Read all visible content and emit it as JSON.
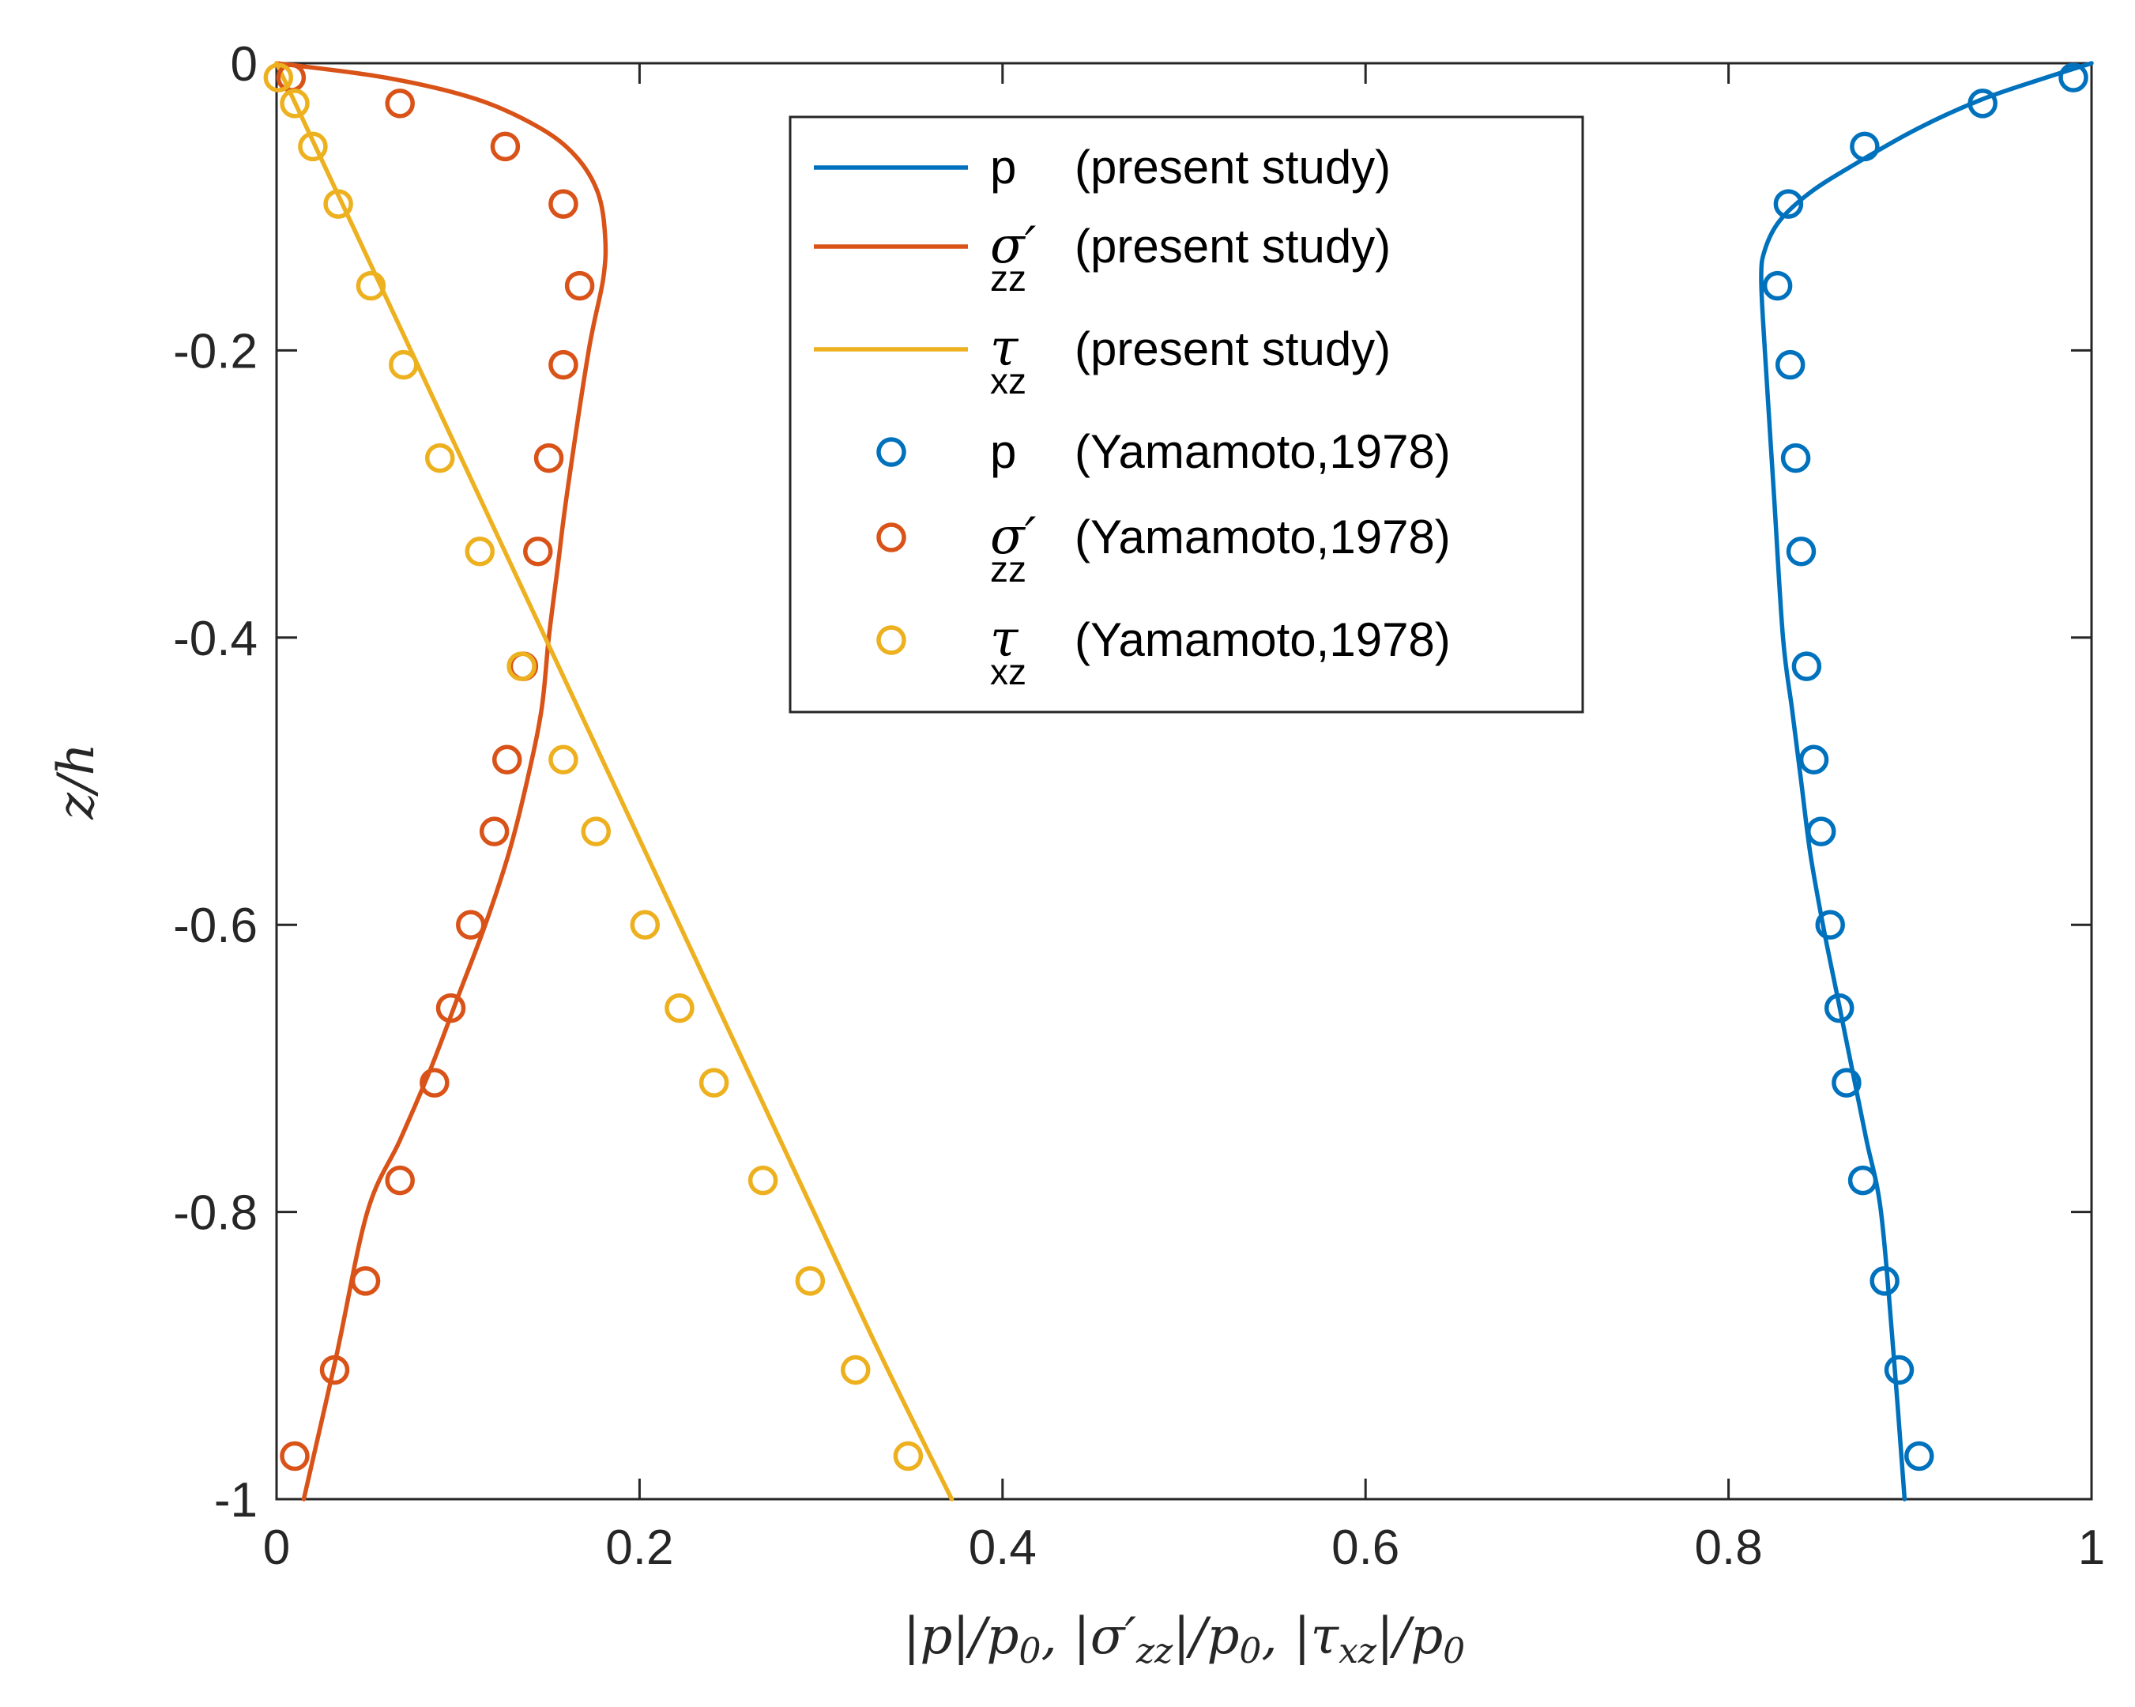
{
  "chart_data": {
    "type": "line",
    "xlabel": "|p|/p0, |σ′zz|/p0, |τxz|/p0",
    "ylabel": "z/h",
    "xlim": [
      0,
      1
    ],
    "ylim": [
      -1,
      0
    ],
    "xticks": [
      0,
      0.2,
      0.4,
      0.6,
      0.8,
      1
    ],
    "yticks": [
      0,
      -0.2,
      -0.4,
      -0.6,
      -0.8,
      -1
    ],
    "xtick_labels": [
      "0",
      "0.2",
      "0.4",
      "0.6",
      "0.8",
      "1"
    ],
    "ytick_labels": [
      "0",
      "-0.2",
      "-0.4",
      "-0.6",
      "-0.8",
      "-1"
    ],
    "grid": false,
    "legend_position": "top-center",
    "colors": {
      "p": "#0072BD",
      "sigma": "#D95319",
      "tau": "#EDB120"
    },
    "legend": {
      "present_study": "(present study)",
      "yamamoto": "(Yamamoto,1978)",
      "p_symbol": "p",
      "sigma_symbol": "σ′",
      "sigma_sub": "zz",
      "tau_symbol": "τ",
      "tau_sub": "xz"
    },
    "series": [
      {
        "name": "p (present study)",
        "kind": "line",
        "color": "#0072BD",
        "x": [
          1.0,
          0.975,
          0.94,
          0.905,
          0.87,
          0.845,
          0.828,
          0.82,
          0.818,
          0.82,
          0.825,
          0.83,
          0.835,
          0.84,
          0.845,
          0.852,
          0.86,
          0.868,
          0.876,
          0.884,
          0.891,
          0.897
        ],
        "z": [
          0,
          -0.01,
          -0.025,
          -0.045,
          -0.07,
          -0.09,
          -0.11,
          -0.13,
          -0.15,
          -0.2,
          -0.3,
          -0.4,
          -0.45,
          -0.5,
          -0.55,
          -0.6,
          -0.65,
          -0.7,
          -0.75,
          -0.8,
          -0.9,
          -1.0
        ]
      },
      {
        "name": "σ′zz (present study)",
        "kind": "line",
        "color": "#D95319",
        "x": [
          0.0,
          0.06,
          0.11,
          0.145,
          0.165,
          0.177,
          0.181,
          0.18,
          0.172,
          0.16,
          0.155,
          0.15,
          0.146,
          0.138,
          0.128,
          0.115,
          0.1,
          0.085,
          0.068,
          0.05,
          0.033,
          0.015
        ],
        "z": [
          0,
          -0.01,
          -0.025,
          -0.045,
          -0.065,
          -0.09,
          -0.12,
          -0.15,
          -0.2,
          -0.3,
          -0.35,
          -0.4,
          -0.45,
          -0.5,
          -0.55,
          -0.6,
          -0.65,
          -0.7,
          -0.75,
          -0.8,
          -0.9,
          -1.0
        ]
      },
      {
        "name": "τxz (present study)",
        "kind": "line",
        "color": "#EDB120",
        "x": [
          0.0,
          0.037,
          0.074,
          0.111,
          0.148,
          0.185,
          0.222,
          0.259,
          0.296,
          0.333,
          0.372
        ],
        "z": [
          0,
          -0.1,
          -0.2,
          -0.3,
          -0.4,
          -0.5,
          -0.6,
          -0.7,
          -0.8,
          -0.9,
          -1.0
        ]
      },
      {
        "name": "p (Yamamoto,1978)",
        "kind": "markers",
        "color": "#0072BD",
        "x": [
          0.99,
          0.94,
          0.875,
          0.833,
          0.827,
          0.834,
          0.837,
          0.84,
          0.843,
          0.847,
          0.851,
          0.856,
          0.861,
          0.865,
          0.874,
          0.886,
          0.894,
          0.905
        ],
        "z": [
          -0.01,
          -0.028,
          -0.058,
          -0.098,
          -0.155,
          -0.21,
          -0.275,
          -0.34,
          -0.42,
          -0.485,
          -0.535,
          -0.6,
          -0.658,
          -0.71,
          -0.778,
          -0.848,
          -0.91,
          -0.97
        ]
      },
      {
        "name": "σ′zz (Yamamoto,1978)",
        "kind": "markers",
        "color": "#D95319",
        "x": [
          0.008,
          0.068,
          0.126,
          0.158,
          0.167,
          0.158,
          0.15,
          0.144,
          0.136,
          0.127,
          0.12,
          0.107,
          0.096,
          0.087,
          0.068,
          0.049,
          0.032,
          0.01
        ],
        "z": [
          -0.01,
          -0.028,
          -0.058,
          -0.098,
          -0.155,
          -0.21,
          -0.275,
          -0.34,
          -0.42,
          -0.485,
          -0.535,
          -0.6,
          -0.658,
          -0.71,
          -0.778,
          -0.848,
          -0.91,
          -0.97
        ]
      },
      {
        "name": "τxz (Yamamoto,1978)",
        "kind": "markers",
        "color": "#EDB120",
        "x": [
          0.001,
          0.01,
          0.02,
          0.034,
          0.052,
          0.07,
          0.09,
          0.112,
          0.135,
          0.158,
          0.176,
          0.203,
          0.222,
          0.241,
          0.268,
          0.294,
          0.319,
          0.348
        ],
        "z": [
          -0.01,
          -0.028,
          -0.058,
          -0.098,
          -0.155,
          -0.21,
          -0.275,
          -0.34,
          -0.42,
          -0.485,
          -0.535,
          -0.6,
          -0.658,
          -0.71,
          -0.778,
          -0.848,
          -0.91,
          -0.97
        ]
      }
    ]
  }
}
